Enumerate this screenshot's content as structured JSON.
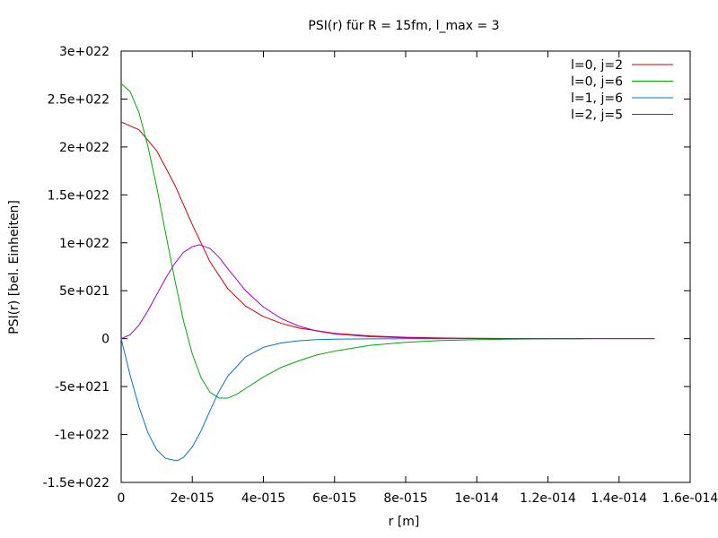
{
  "chart_data": {
    "type": "line",
    "title": "PSI(r) für R = 15fm, l_max = 3",
    "xlabel": "r [m]",
    "ylabel": "PSI(r) [bel. Einheiten]",
    "xlim": [
      0,
      1.6e-14
    ],
    "ylim": [
      -1.5e+22,
      3e+22
    ],
    "x_ticks": [
      {
        "value": 0,
        "label": "0"
      },
      {
        "value": 2e-15,
        "label": "2e-015"
      },
      {
        "value": 4e-15,
        "label": "4e-015"
      },
      {
        "value": 6e-15,
        "label": "6e-015"
      },
      {
        "value": 8e-15,
        "label": "8e-015"
      },
      {
        "value": 1e-14,
        "label": "1e-014"
      },
      {
        "value": 1.2e-14,
        "label": "1.2e-014"
      },
      {
        "value": 1.4e-14,
        "label": "1.4e-014"
      },
      {
        "value": 1.6e-14,
        "label": "1.6e-014"
      }
    ],
    "y_ticks": [
      {
        "value": 3e+22,
        "label": "3e+022"
      },
      {
        "value": 2.5e+22,
        "label": "2.5e+022"
      },
      {
        "value": 2e+22,
        "label": "2e+022"
      },
      {
        "value": 1.5e+22,
        "label": "1.5e+022"
      },
      {
        "value": 1e+22,
        "label": "1e+022"
      },
      {
        "value": 5e+21,
        "label": "5e+021"
      },
      {
        "value": 0,
        "label": "0"
      },
      {
        "value": -5e+21,
        "label": "-5e+021"
      },
      {
        "value": -1e+22,
        "label": "-1e+022"
      },
      {
        "value": -1.5e+22,
        "label": "-1.5e+022"
      }
    ],
    "grid": false,
    "legend_position": "top-right",
    "series": [
      {
        "name": "l=0, j=2",
        "color": "#cc0000",
        "x": [
          0,
          5e-16,
          1e-15,
          1.5e-15,
          2e-15,
          2.5e-15,
          3e-15,
          3.5e-15,
          4e-15,
          4.5e-15,
          5e-15,
          6e-15,
          7e-15,
          8e-15,
          9e-15,
          1e-14,
          1.1e-14,
          1.2e-14,
          1.3e-14,
          1.4e-14,
          1.5e-14
        ],
        "y": [
          2.26e+22,
          2.18e+22,
          1.96e+22,
          1.61e+22,
          1.19e+22,
          8e+21,
          5.2e+21,
          3.4e+21,
          2.3e+21,
          1.6e+21,
          1.1e+21,
          5.5e+20,
          2.8e+20,
          1.4e+20,
          7e+19,
          3.5e+19,
          1.8e+19,
          9e+18,
          4e+18,
          2e+18,
          1e+18
        ]
      },
      {
        "name": "l=0, j=6",
        "color": "#00aa00",
        "x": [
          0,
          2.5e-16,
          5e-16,
          7.5e-16,
          1e-15,
          1.25e-15,
          1.5e-15,
          1.75e-15,
          2e-15,
          2.25e-15,
          2.5e-15,
          2.75e-15,
          3e-15,
          3.25e-15,
          3.5e-15,
          4e-15,
          4.5e-15,
          5e-15,
          5.5e-15,
          6e-15,
          7e-15,
          8e-15,
          9e-15,
          1e-14,
          1.1e-14,
          1.2e-14,
          1.3e-14
        ],
        "y": [
          2.66e+22,
          2.58e+22,
          2.36e+22,
          2.01e+22,
          1.58e+22,
          1.1e+22,
          6.3e+21,
          1.9e+21,
          -1.6e+21,
          -4.1e+21,
          -5.6e+21,
          -6.2e+21,
          -6.2e+21,
          -5.8e+21,
          -5.2e+21,
          -4e+21,
          -3e+21,
          -2.3e+21,
          -1.7e+21,
          -1.3e+21,
          -7e+20,
          -3.8e+20,
          -2e+20,
          -1e+20,
          -5e+19,
          -2.5e+19,
          -1e+19
        ]
      },
      {
        "name": "l=1, j=6",
        "color": "#0077cc",
        "x": [
          0,
          2.5e-16,
          5e-16,
          7.5e-16,
          1e-15,
          1.25e-15,
          1.5e-15,
          1.6e-15,
          1.75e-15,
          2e-15,
          2.25e-15,
          2.5e-15,
          2.75e-15,
          3e-15,
          3.5e-15,
          4e-15,
          4.5e-15,
          5e-15,
          5.5e-15,
          6e-15,
          7e-15,
          8e-15,
          9e-15,
          1e-14,
          1.1e-14,
          1.2e-14,
          1.32e-14
        ],
        "y": [
          0,
          -3.8e+21,
          -7.1e+21,
          -9.8e+21,
          -1.16e+22,
          -1.25e+22,
          -1.27e+22,
          -1.27e+22,
          -1.24e+22,
          -1.13e+22,
          -9.6e+21,
          -7.5e+21,
          -5.5e+21,
          -3.9e+21,
          -1.9e+21,
          -9e+20,
          -4.5e+20,
          -2.2e+20,
          -1e+20,
          -5e+19,
          -1.5e+19,
          -5e+18,
          -2e+18,
          -1e+18,
          0,
          0,
          0
        ]
      },
      {
        "name": "l=2, j=5",
        "color": "#aa00cc",
        "x": [
          0,
          2.5e-16,
          5e-16,
          7.5e-16,
          1e-15,
          1.25e-15,
          1.5e-15,
          1.75e-15,
          2e-15,
          2.2e-15,
          2.5e-15,
          2.75e-15,
          3e-15,
          3.5e-15,
          4e-15,
          4.5e-15,
          5e-15,
          5.5e-15,
          6e-15,
          7e-15,
          8e-15,
          9e-15,
          1e-14,
          1.1e-14,
          1.2e-14,
          1.3e-14,
          1.4e-14,
          1.5e-14
        ],
        "y": [
          0,
          4e+20,
          1.4e+21,
          2.9e+21,
          4.6e+21,
          6.3e+21,
          7.8e+21,
          9e+21,
          9.6e+21,
          9.8e+21,
          9.4e+21,
          8.5e+21,
          7.3e+21,
          5e+21,
          3.3e+21,
          2.1e+21,
          1.3e+21,
          8e+20,
          5e+20,
          2e+20,
          8e+19,
          3e+19,
          1.2e+19,
          5e+18,
          2e+18,
          1e+18,
          0,
          0
        ]
      }
    ]
  }
}
